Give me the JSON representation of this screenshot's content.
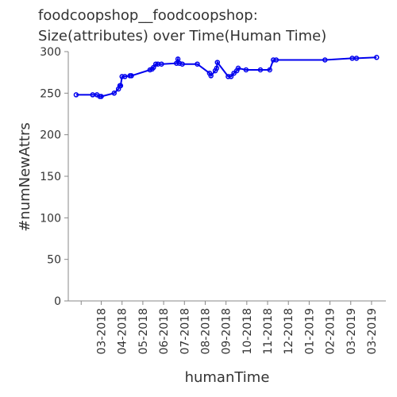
{
  "chart_data": {
    "type": "line",
    "title": [
      "foodcoopshop__foodcoopshop:",
      "Size(attributes) over Time(Human Time)"
    ],
    "xlabel": "humanTime",
    "ylabel": "#numNewAttrs",
    "x_ticks": [
      "03-2018",
      "04-2018",
      "05-2018",
      "06-2018",
      "07-2018",
      "08-2018",
      "09-2018",
      "10-2018",
      "11-2018",
      "12-2018",
      "01-2019",
      "02-2019",
      "03-2019",
      "03-2019"
    ],
    "y_ticks": [
      "0",
      "50",
      "100",
      "150",
      "200",
      "250",
      "300"
    ],
    "ylim": [
      0,
      300
    ],
    "grid": false,
    "series": [
      {
        "color": "#0000ee",
        "x": [
          "2018-01-12",
          "2018-02-04",
          "2018-02-10",
          "2018-02-14",
          "2018-02-16",
          "2018-03-06",
          "2018-03-12",
          "2018-03-14",
          "2018-03-15",
          "2018-03-17",
          "2018-03-21",
          "2018-03-28",
          "2018-03-30",
          "2018-04-25",
          "2018-04-28",
          "2018-04-30",
          "2018-05-03",
          "2018-05-06",
          "2018-05-11",
          "2018-06-01",
          "2018-06-03",
          "2018-06-05",
          "2018-06-09",
          "2018-06-30",
          "2018-07-17",
          "2018-07-19",
          "2018-07-25",
          "2018-07-27",
          "2018-07-28",
          "2018-08-12",
          "2018-08-16",
          "2018-08-20",
          "2018-08-24",
          "2018-08-26",
          "2018-09-06",
          "2018-09-26",
          "2018-10-09",
          "2018-10-14",
          "2018-10-18",
          "2018-12-25",
          "2019-02-01",
          "2019-02-07",
          "2019-03-07"
        ],
        "y": [
          248,
          248,
          248,
          246,
          246,
          250,
          255,
          259,
          259,
          270,
          270,
          271,
          271,
          278,
          279,
          281,
          285,
          285,
          285,
          286,
          291,
          286,
          285,
          285,
          274,
          271,
          277,
          280,
          287,
          270,
          270,
          274,
          277,
          280,
          278,
          278,
          278,
          290,
          290,
          290,
          292,
          292,
          293
        ]
      }
    ]
  }
}
